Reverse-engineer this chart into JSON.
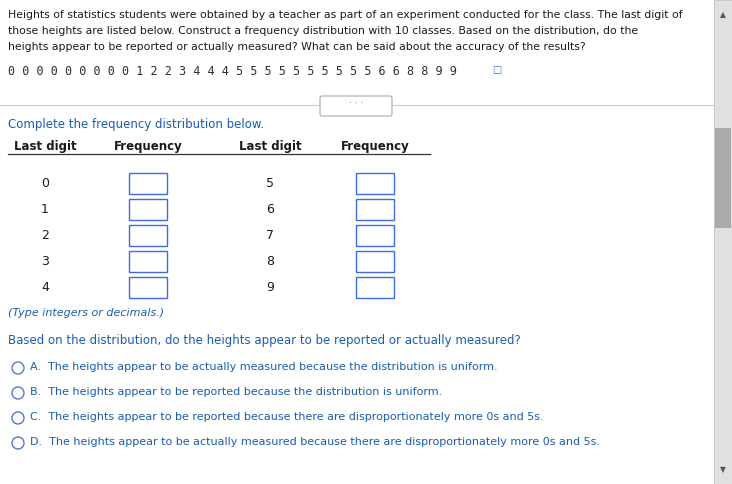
{
  "bg_color": "#ffffff",
  "header_line1": "Heights of statistics students were obtained by a teacher as part of an experiment conducted for the class. The last digit of",
  "header_line2": "those heights are listed below. Construct a frequency distribution with 10 classes. Based on the distribution, do the",
  "header_line3": "heights appear to be reported or actually measured? What can be said about the accuracy of the results?",
  "data_line": "0 0 0 0 0 0 0 0 0 1 2 2 3 4 4 4 5 5 5 5 5 5 5 5 5 5 6 6 8 8 9 9",
  "section_label": "Complete the frequency distribution below.",
  "col1_header": "Last digit",
  "col2_header": "Frequency",
  "col3_header": "Last digit",
  "col4_header": "Frequency",
  "left_digits": [
    "0",
    "1",
    "2",
    "3",
    "4"
  ],
  "right_digits": [
    "5",
    "6",
    "7",
    "8",
    "9"
  ],
  "type_note": "(Type integers or decimals.)",
  "question": "Based on the distribution, do the heights appear to be reported or actually measured?",
  "options": [
    "A.  The heights appear to be actually measured because the distribution is uniform.",
    "B.  The heights appear to be reported because the distribution is uniform.",
    "C.  The heights appear to be reported because there are disproportionately more 0s and 5s.",
    "D.  The heights appear to be actually measured because there are disproportionately more 0s and 5s."
  ],
  "header_color": "#1a1a1a",
  "data_line_color": "#2e2e2e",
  "blue_color": "#1a5cb0",
  "dark_color": "#1a1a1a",
  "divider_color": "#cccccc",
  "box_edge_color": "#4169e1",
  "radio_color": "#5577cc",
  "scroll_bg": "#e0e0e0",
  "scroll_thumb": "#aaaaaa"
}
